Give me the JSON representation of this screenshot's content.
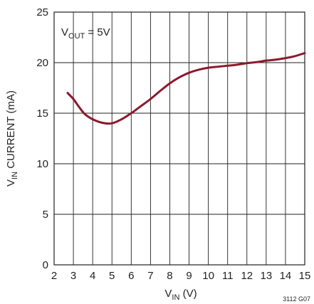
{
  "chart_data": {
    "type": "line",
    "title": "",
    "annotation": {
      "main": "V",
      "sub": "OUT",
      "rest": " = 5V"
    },
    "xlabel": {
      "main": "V",
      "sub": "IN",
      "rest": " (V)"
    },
    "ylabel": {
      "main": "V",
      "sub": "IN",
      "rest": " CURRENT (mA)"
    },
    "xlim": [
      2,
      15
    ],
    "ylim": [
      0,
      25
    ],
    "x_ticks": [
      2,
      3,
      4,
      5,
      6,
      7,
      8,
      9,
      10,
      11,
      12,
      13,
      14,
      15
    ],
    "y_ticks": [
      0,
      5,
      10,
      15,
      20,
      25
    ],
    "x_tick_labels": [
      "2",
      "3",
      "4",
      "5",
      "6",
      "7",
      "8",
      "9",
      "10",
      "11",
      "12",
      "13",
      "14",
      "15"
    ],
    "y_tick_labels": [
      "0",
      "5",
      "10",
      "15",
      "20",
      "25"
    ],
    "grid": true,
    "figure_id": "3112 G07",
    "series": [
      {
        "color": "#8b1a2e",
        "x": [
          2.7,
          3.0,
          3.3,
          3.6,
          4.0,
          4.5,
          5.0,
          5.5,
          6.0,
          6.5,
          7.0,
          7.5,
          8.0,
          8.5,
          9.0,
          9.5,
          10.0,
          10.5,
          11.0,
          11.5,
          12.0,
          12.5,
          13.0,
          13.5,
          14.0,
          14.5,
          15.0
        ],
        "y": [
          17.0,
          16.4,
          15.6,
          14.9,
          14.4,
          14.05,
          14.0,
          14.4,
          15.0,
          15.7,
          16.4,
          17.2,
          17.95,
          18.55,
          19.0,
          19.3,
          19.5,
          19.6,
          19.7,
          19.8,
          19.95,
          20.05,
          20.2,
          20.3,
          20.45,
          20.65,
          20.95
        ]
      }
    ]
  }
}
